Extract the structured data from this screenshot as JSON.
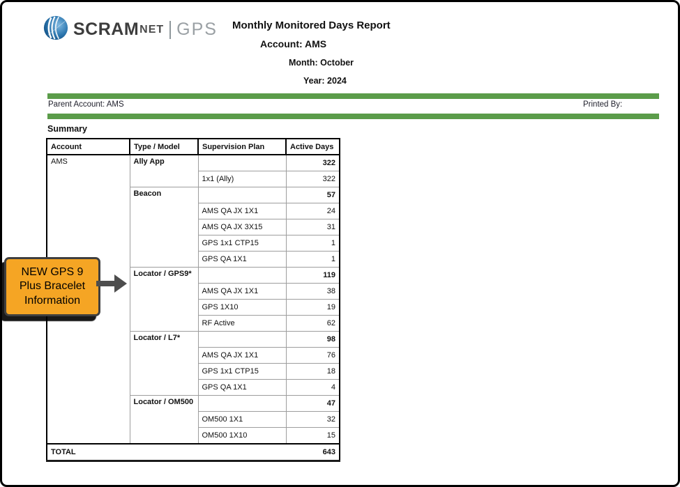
{
  "logo": {
    "scram": "SCRAM",
    "net": "NET",
    "gps": "GPS",
    "globe_icon": "blue-globe-swoosh",
    "globe_colors": {
      "light": "#7fb8e0",
      "mid": "#2e78b0",
      "dark": "#0d4a7e"
    }
  },
  "titles": {
    "report_title": "Monthly Monitored Days Report",
    "account_line": "Account: AMS",
    "month_line": "Month: October",
    "year_line": "Year: 2024"
  },
  "meta": {
    "parent_account": "Parent Account: AMS",
    "printed_by": "Printed By:"
  },
  "colors": {
    "green_bar": "#5b9c4a",
    "callout_fill": "#F5A524",
    "callout_border": "#3f3f3f",
    "arrow": "#4d4d4d"
  },
  "summary_label": "Summary",
  "table": {
    "columns": [
      "Account",
      "Type / Model",
      "Supervision Plan",
      "Active Days"
    ],
    "account": "AMS",
    "groups": [
      {
        "type_model": "Ally App",
        "total": "322",
        "plans": [
          {
            "plan": "1x1 (Ally)",
            "days": "322"
          }
        ]
      },
      {
        "type_model": "Beacon",
        "total": "57",
        "plans": [
          {
            "plan": "AMS QA JX 1X1",
            "days": "24"
          },
          {
            "plan": "AMS QA JX 3X15",
            "days": "31"
          },
          {
            "plan": "GPS 1x1 CTP15",
            "days": "1"
          },
          {
            "plan": "GPS QA 1X1",
            "days": "1"
          }
        ]
      },
      {
        "type_model": "Locator / GPS9*",
        "total": "119",
        "plans": [
          {
            "plan": "AMS QA JX 1X1",
            "days": "38"
          },
          {
            "plan": "GPS 1X10",
            "days": "19"
          },
          {
            "plan": "RF Active",
            "days": "62"
          }
        ]
      },
      {
        "type_model": "Locator / L7*",
        "total": "98",
        "plans": [
          {
            "plan": "AMS QA JX 1X1",
            "days": "76"
          },
          {
            "plan": "GPS 1x1 CTP15",
            "days": "18"
          },
          {
            "plan": "GPS QA 1X1",
            "days": "4"
          }
        ]
      },
      {
        "type_model": "Locator / OM500",
        "total": "47",
        "plans": [
          {
            "plan": "OM500 1X1",
            "days": "32"
          },
          {
            "plan": "OM500 1X10",
            "days": "15"
          }
        ]
      }
    ],
    "total_label": "TOTAL",
    "total_value": "643"
  },
  "callout": {
    "lines": [
      "NEW GPS 9",
      "Plus Bracelet",
      "Information"
    ],
    "arrow_icon": "right-arrow"
  }
}
